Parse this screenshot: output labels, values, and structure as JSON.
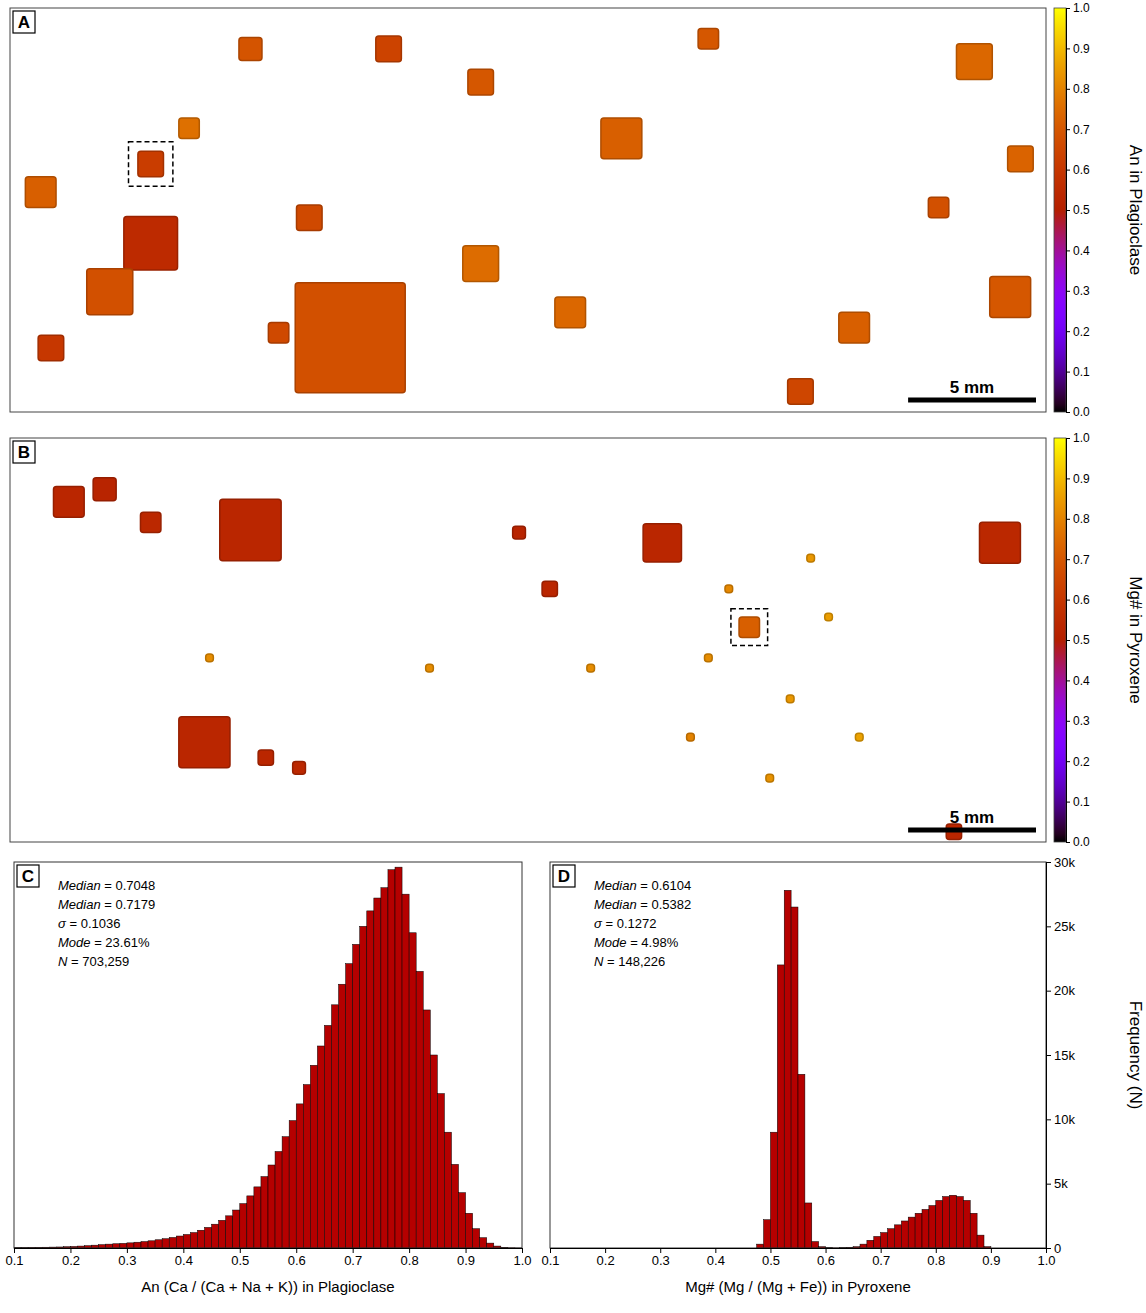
{
  "chart_data": [
    {
      "type": "map",
      "panel_label": "A",
      "xlim": [
        0,
        40.5
      ],
      "ylim": [
        0,
        15.8
      ],
      "tick_labels": false,
      "grains": {
        "x": [
          13.3,
          5.5,
          3.9,
          5.5,
          18.4,
          23.9,
          37.7,
          39.1,
          33.0,
          30.9,
          1.2,
          14.8,
          18.4,
          11.7,
          21.9,
          1.6,
          10.5,
          27.3,
          39.5,
          7.0,
          9.4,
          36.3
        ],
        "y": [
          12.9,
          9.2,
          11.1,
          6.1,
          10.0,
          5.1,
          2.1,
          11.3,
          12.5,
          15.0,
          7.2,
          1.6,
          2.9,
          8.2,
          11.9,
          13.3,
          12.7,
          1.2,
          5.9,
          4.7,
          1.6,
          7.8
        ],
        "size": [
          4.3,
          2.1,
          1.8,
          1.0,
          1.4,
          1.6,
          1.4,
          1.6,
          1.2,
          1.0,
          1.2,
          1.0,
          1.0,
          1.0,
          1.2,
          1.0,
          0.8,
          0.8,
          1.0,
          0.8,
          0.9,
          0.8
        ],
        "values": [
          0.68,
          0.55,
          0.68,
          0.62,
          0.75,
          0.72,
          0.74,
          0.7,
          0.72,
          0.65,
          0.72,
          0.64,
          0.7,
          0.66,
          0.74,
          0.6,
          0.66,
          0.7,
          0.73,
          0.76,
          0.69,
          0.68
        ]
      },
      "highlight": 3,
      "scale_bar": {
        "length": 5,
        "label": "5 mm"
      },
      "colorbar": {
        "label": "An in Plagioclase",
        "range": [
          0,
          1
        ],
        "ticks": [
          {
            "value": 0,
            "label": "0.0"
          },
          0.1,
          0.2,
          0.3,
          0.4,
          0.5,
          0.6,
          0.7,
          0.8,
          0.9,
          {
            "value": 1,
            "label": "1.0"
          }
        ]
      }
    },
    {
      "type": "map",
      "panel_label": "B",
      "xlim": [
        0,
        40.5
      ],
      "ylim": [
        0,
        15.8
      ],
      "tick_labels": false,
      "grains": {
        "x": [
          9.4,
          2.3,
          3.7,
          5.5,
          7.6,
          10.0,
          11.3,
          25.5,
          38.7,
          36.9,
          19.9,
          21.1,
          28.9,
          27.3,
          30.5,
          32.0,
          26.6,
          29.7,
          33.2,
          28.1,
          31.3,
          7.8,
          16.4,
          22.7
        ],
        "y": [
          3.6,
          2.5,
          2.0,
          3.3,
          11.9,
          12.5,
          12.9,
          4.1,
          4.1,
          15.4,
          3.7,
          5.9,
          7.4,
          8.6,
          10.2,
          7.0,
          11.7,
          13.3,
          11.7,
          5.9,
          4.7,
          8.6,
          9.0,
          9.0
        ],
        "size": [
          2.4,
          1.2,
          0.9,
          0.8,
          2.0,
          0.6,
          0.5,
          1.5,
          1.6,
          0.6,
          0.5,
          0.6,
          0.8,
          0.3,
          0.3,
          0.3,
          0.3,
          0.3,
          0.3,
          0.3,
          0.3,
          0.3,
          0.3,
          0.3
        ],
        "values": [
          0.53,
          0.53,
          0.52,
          0.54,
          0.53,
          0.53,
          0.54,
          0.53,
          0.54,
          0.53,
          0.52,
          0.53,
          0.72,
          0.82,
          0.84,
          0.85,
          0.8,
          0.83,
          0.86,
          0.81,
          0.84,
          0.82,
          0.82,
          0.82
        ]
      },
      "highlight": 12,
      "scale_bar": {
        "length": 5,
        "label": "5 mm"
      },
      "colorbar": {
        "label": "Mg# in Pyroxene",
        "range": [
          0,
          1
        ],
        "ticks": [
          {
            "value": 0,
            "label": "0.0"
          },
          0.1,
          0.2,
          0.3,
          0.4,
          0.5,
          0.6,
          0.7,
          0.8,
          0.9,
          {
            "value": 1,
            "label": "1.0"
          }
        ]
      }
    },
    {
      "type": "histogram",
      "panel_label": "C",
      "color": "#b50000",
      "tick_labels": "x",
      "x_label": "An (Ca / (Ca + Na + K)) in Plagioclase",
      "annotations": [
        "Median = 0.7048",
        "Median = 0.7179",
        "σ = 0.1036",
        "Mode = 23.61%",
        "N = 703,259"
      ],
      "xlim": [
        0.1,
        1.0
      ],
      "ylim": [
        0,
        30000
      ],
      "xticks": [
        0.1,
        0.2,
        0.3,
        0.4,
        0.5,
        0.6,
        0.7,
        0.8,
        0.9,
        {
          "value": 1,
          "label": "1.0"
        }
      ],
      "bins": [
        0.1,
        0.1125,
        0.125,
        0.1375,
        0.15,
        0.1625,
        0.175,
        0.1875,
        0.2,
        0.2125,
        0.225,
        0.2375,
        0.25,
        0.2625,
        0.275,
        0.2875,
        0.3,
        0.3125,
        0.325,
        0.3375,
        0.35,
        0.3625,
        0.375,
        0.3875,
        0.4,
        0.4125,
        0.425,
        0.4375,
        0.45,
        0.4625,
        0.475,
        0.4875,
        0.5,
        0.5125,
        0.525,
        0.5375,
        0.55,
        0.5625,
        0.575,
        0.5875,
        0.6,
        0.6125,
        0.625,
        0.6375,
        0.65,
        0.6625,
        0.675,
        0.6875,
        0.7,
        0.7125,
        0.725,
        0.7375,
        0.75,
        0.7625,
        0.775,
        0.7875,
        0.8,
        0.8125,
        0.825,
        0.8375,
        0.85,
        0.8625,
        0.875,
        0.8875,
        0.9,
        0.9125,
        0.925,
        0.9375,
        0.95,
        0.9625,
        0.975,
        0.9875,
        1.0
      ],
      "values": [
        20,
        30,
        40,
        50,
        60,
        70,
        80,
        100,
        120,
        150,
        180,
        220,
        260,
        300,
        330,
        360,
        400,
        450,
        500,
        560,
        640,
        720,
        820,
        930,
        1050,
        1200,
        1380,
        1600,
        1850,
        2150,
        2500,
        2950,
        3450,
        4050,
        4750,
        5550,
        6450,
        7500,
        8650,
        9900,
        11200,
        12700,
        14200,
        15700,
        17300,
        18900,
        20500,
        22100,
        23600,
        25000,
        26200,
        27200,
        28000,
        29400,
        29600,
        27500,
        24500,
        21500,
        18500,
        15000,
        12000,
        9000,
        6500,
        4300,
        2700,
        1500,
        800,
        380,
        150,
        50,
        15,
        5
      ]
    },
    {
      "type": "histogram",
      "panel_label": "D",
      "color": "#b50000",
      "x_label": "Mg# (Mg / (Mg + Fe)) in Pyroxene",
      "y_label": "Frequency (N)",
      "annotations": [
        "Median = 0.6104",
        "Median = 0.5382",
        "σ = 0.1272",
        "Mode = 4.98%",
        "N = 148,226"
      ],
      "xlim": [
        0.1,
        1.0
      ],
      "ylim": [
        0,
        30000
      ],
      "xticks": [
        0.1,
        0.2,
        0.3,
        0.4,
        0.5,
        0.6,
        0.7,
        0.8,
        0.9,
        {
          "value": 1,
          "label": "1.0"
        }
      ],
      "yticks": [
        0,
        {
          "value": 5000,
          "label": "5k"
        },
        {
          "value": 10000,
          "label": "10k"
        },
        {
          "value": 15000,
          "label": "15k"
        },
        {
          "value": 20000,
          "label": "20k"
        },
        {
          "value": 25000,
          "label": "25k"
        },
        {
          "value": 30000,
          "label": "30k"
        }
      ],
      "bins": [
        0.475,
        0.4875,
        0.5,
        0.5125,
        0.525,
        0.5375,
        0.55,
        0.5625,
        0.575,
        0.5875,
        0.6,
        0.6125,
        0.625,
        0.6375,
        0.65,
        0.6625,
        0.675,
        0.6875,
        0.7,
        0.7125,
        0.725,
        0.7375,
        0.75,
        0.7625,
        0.775,
        0.7875,
        0.8,
        0.8125,
        0.825,
        0.8375,
        0.85,
        0.8625,
        0.875,
        0.8875,
        0.9
      ],
      "values": [
        300,
        2200,
        9000,
        22000,
        27800,
        26500,
        13500,
        3500,
        500,
        100,
        20,
        10,
        20,
        50,
        100,
        300,
        600,
        900,
        1200,
        1500,
        1800,
        2100,
        2400,
        2700,
        3000,
        3300,
        3700,
        4000,
        4100,
        4000,
        3700,
        2700,
        1000,
        100
      ]
    }
  ]
}
